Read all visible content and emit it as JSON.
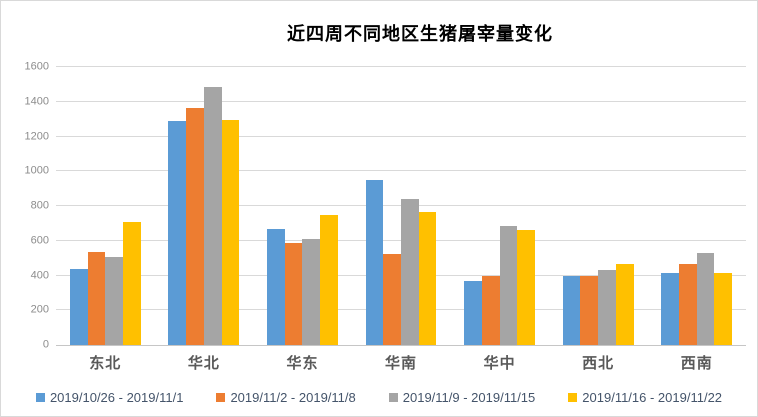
{
  "chart_data": {
    "type": "bar",
    "title": "近四周不同地区生猪屠宰量变化",
    "categories": [
      "东北",
      "华北",
      "华东",
      "华南",
      "华中",
      "西北",
      "西南"
    ],
    "series": [
      {
        "name": "2019/10/26 - 2019/11/1",
        "color": "#5B9BD5",
        "values": [
          435,
          1290,
          665,
          950,
          370,
          395,
          415
        ]
      },
      {
        "name": "2019/11/2 - 2019/11/8",
        "color": "#ED7D31",
        "values": [
          535,
          1365,
          590,
          525,
          395,
          400,
          465
        ]
      },
      {
        "name": "2019/11/9 - 2019/11/15",
        "color": "#A5A5A5",
        "values": [
          505,
          1485,
          610,
          840,
          685,
          430,
          530
        ]
      },
      {
        "name": "2019/11/16 - 2019/11/22",
        "color": "#FFC000",
        "values": [
          710,
          1295,
          750,
          765,
          660,
          465,
          415
        ]
      }
    ],
    "xlabel": "",
    "ylabel": "",
    "ylim": [
      0,
      1600
    ],
    "ytick_interval": 200,
    "grid": true,
    "legend_position": "bottom"
  },
  "style_colors": {
    "gridline": "#d9d9d9",
    "axis_line": "#c6c6c6",
    "y_tick_text": "#8c8c8c",
    "x_tick_text": "#595959",
    "legend_text": "#44546a",
    "border": "#d9d9d9",
    "background": "#ffffff"
  }
}
